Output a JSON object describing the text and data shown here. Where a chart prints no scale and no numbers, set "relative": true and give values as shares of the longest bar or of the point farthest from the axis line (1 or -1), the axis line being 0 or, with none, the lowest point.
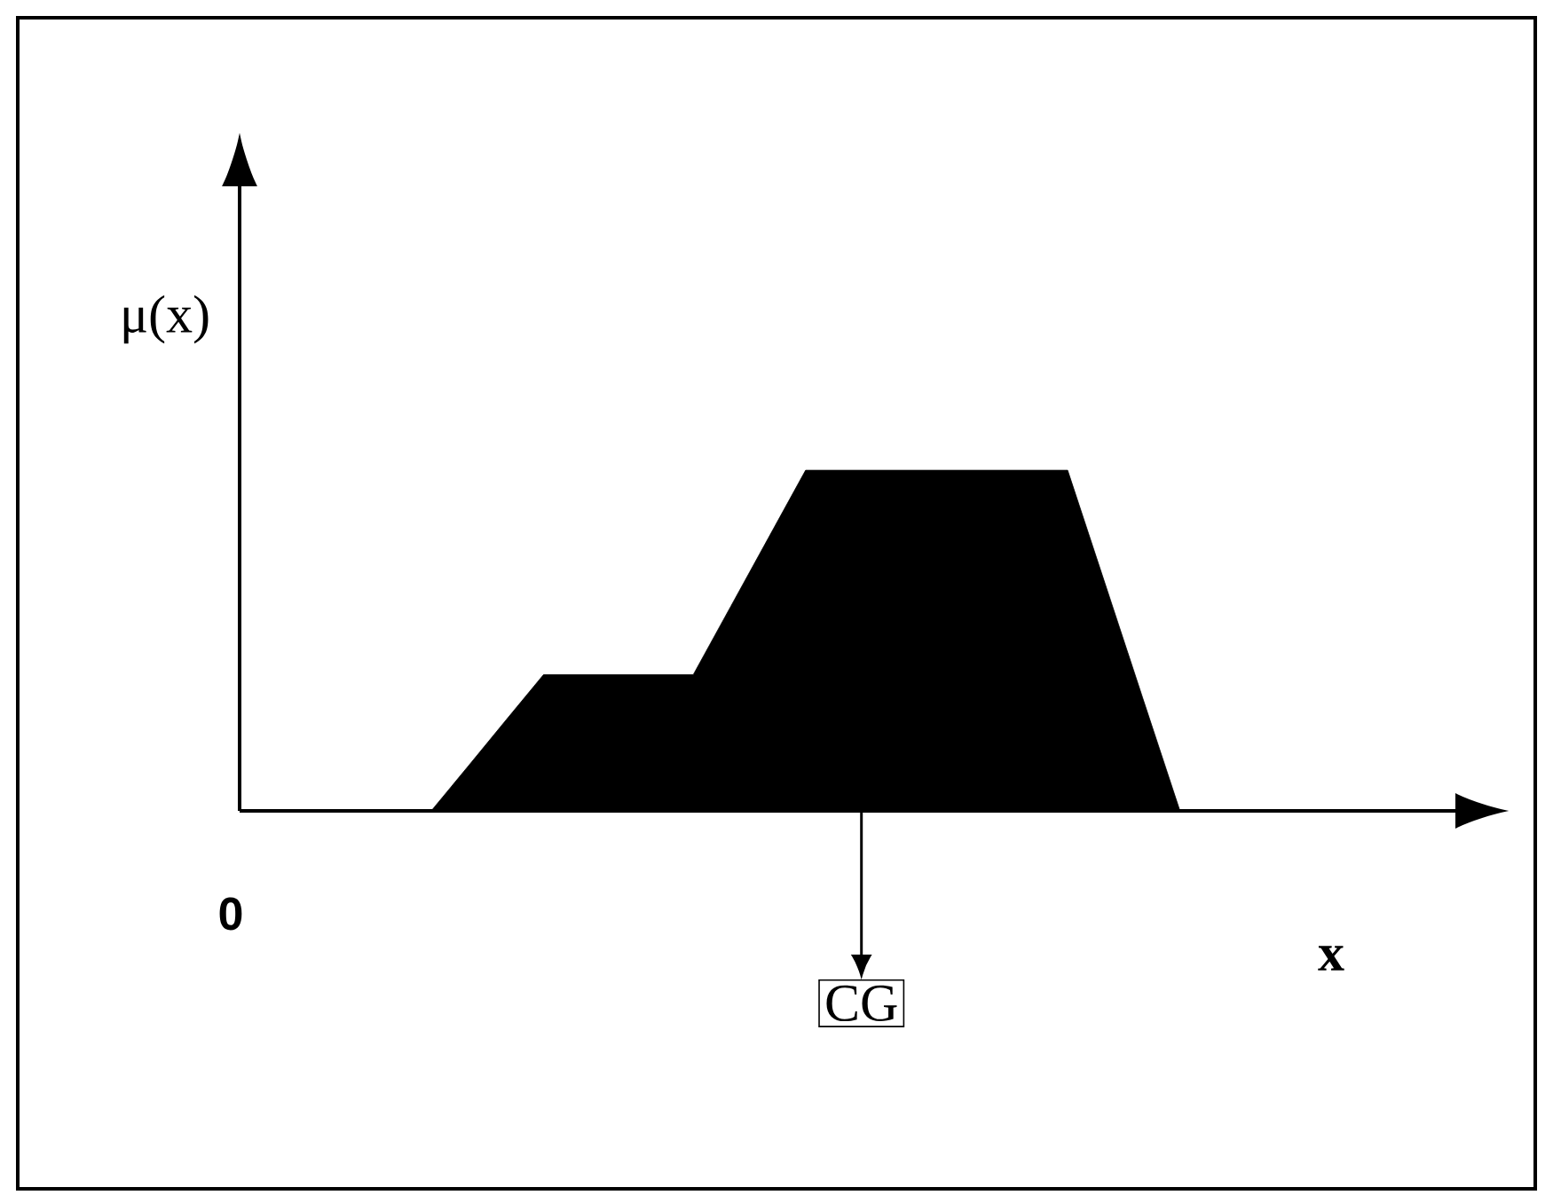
{
  "chart_data": {
    "type": "area",
    "relative": true,
    "xlabel": "x",
    "ylabel": "μ(x)",
    "categories": [
      null,
      null,
      null,
      null,
      null,
      null,
      null,
      null,
      null,
      null,
      null,
      null,
      null,
      null,
      null,
      null,
      null,
      null,
      null,
      null,
      null
    ],
    "values": [
      0,
      0.133,
      0.267,
      0.4,
      0.4,
      0.4,
      0.4,
      0.4,
      0.6,
      0.8,
      1,
      1,
      1,
      1,
      1,
      1,
      1,
      1,
      0.667,
      0.333,
      0
    ],
    "color": "#000000",
    "annotations": [
      "CG",
      "0"
    ]
  }
}
